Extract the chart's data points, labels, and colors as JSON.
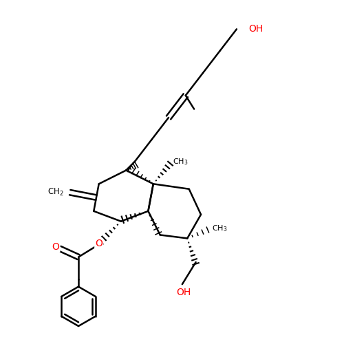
{
  "bg_color": "#ffffff",
  "bond_color": "#000000",
  "atom_color_O": "#ff0000",
  "lw": 1.8,
  "fig_size": [
    5.0,
    5.0
  ],
  "dpi": 100,
  "xlim": [
    0,
    10
  ],
  "ylim": [
    0,
    10
  ]
}
